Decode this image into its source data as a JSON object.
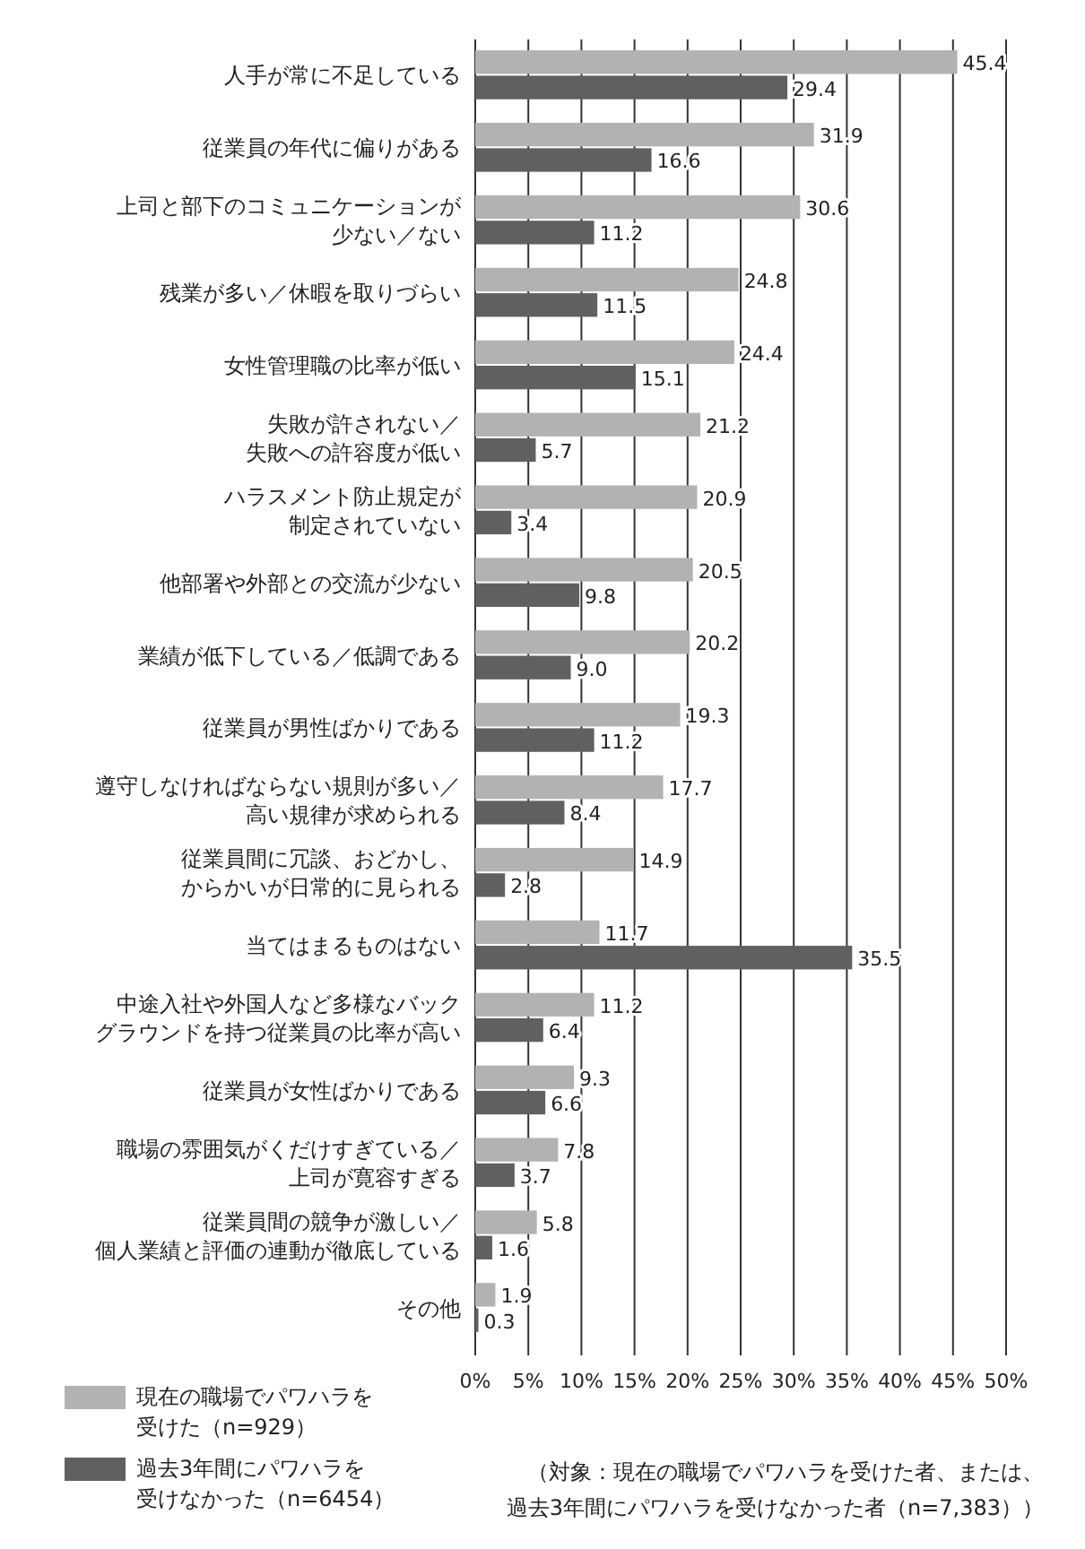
{
  "chart_data": {
    "type": "bar",
    "orientation": "horizontal",
    "categories": [
      "人手が常に不足している",
      "従業員の年代に偏りがある",
      "上司と部下のコミュニケーションが少ない／ない",
      "残業が多い／休暇を取りづらい",
      "女性管理職の比率が低い",
      "失敗が許されない／失敗への許容度が低い",
      "ハラスメント防止規定が制定されていない",
      "他部署や外部との交流が少ない",
      "業績が低下している／低調である",
      "従業員が男性ばかりである",
      "遵守しなければならない規則が多い／高い規律が求められる",
      "従業員間に冗談、おどかし、からかいが日常的に見られる",
      "当てはまるものはない",
      "中途入社や外国人など多様なバックグラウンドを持つ従業員の比率が高い",
      "従業員が女性ばかりである",
      "職場の雰囲気がくだけすぎている／上司が寛容すぎる",
      "従業員間の競争が激しい／個人業績と評価の連動が徹底している",
      "その他"
    ],
    "series": [
      {
        "name": "現在の職場でパワハラを受けた（n=929）",
        "color": "#b2b2b2",
        "values": [
          45.4,
          31.9,
          30.6,
          24.8,
          24.4,
          21.2,
          20.9,
          20.5,
          20.2,
          19.3,
          17.7,
          14.9,
          11.7,
          11.2,
          9.3,
          7.8,
          5.8,
          1.9
        ],
        "value_labels": [
          "45.4",
          "31.9",
          "30.6",
          "24.8",
          "24.4",
          "21.2",
          "20.9",
          "20.5",
          "20.2",
          "19.3",
          "17.7",
          "14.9",
          "11.7",
          "11.2",
          "9.3",
          "7.8",
          "5.8",
          "1.9"
        ]
      },
      {
        "name": "過去3年間にパワハラを受けなかった（n=6454）",
        "color": "#606060",
        "values": [
          29.4,
          16.6,
          11.2,
          11.5,
          15.1,
          5.7,
          3.4,
          9.8,
          9.0,
          11.2,
          8.4,
          2.8,
          35.5,
          6.4,
          6.6,
          3.7,
          1.6,
          0.3
        ],
        "value_labels": [
          "29.4",
          "16.6",
          "11.2",
          "11.5",
          "15.1",
          "5.7",
          "3.4",
          "9.8",
          "9.0",
          "11.2",
          "8.4",
          "2.8",
          "35.5",
          "6.4",
          "6.6",
          "3.7",
          "1.6",
          "0.3"
        ]
      }
    ],
    "xlim": [
      0,
      50
    ],
    "xticks": [
      {
        "value": 0,
        "label": "0%"
      },
      {
        "value": 5,
        "label": "5%"
      },
      {
        "value": 10,
        "label": "10%"
      },
      {
        "value": 15,
        "label": "15%"
      },
      {
        "value": 20,
        "label": "20%"
      },
      {
        "value": 25,
        "label": "25%"
      },
      {
        "value": 30,
        "label": "30%"
      },
      {
        "value": 35,
        "label": "35%"
      },
      {
        "value": 40,
        "label": "40%"
      },
      {
        "value": 45,
        "label": "45%"
      },
      {
        "value": 50,
        "label": "50%"
      }
    ],
    "grid": "x",
    "legend": "bottom left",
    "annotations": [
      "（対象：現在の職場でパワハラを受けた者、または、過去3年間にパワハラを受けなかった者（n=7,383））"
    ]
  }
}
